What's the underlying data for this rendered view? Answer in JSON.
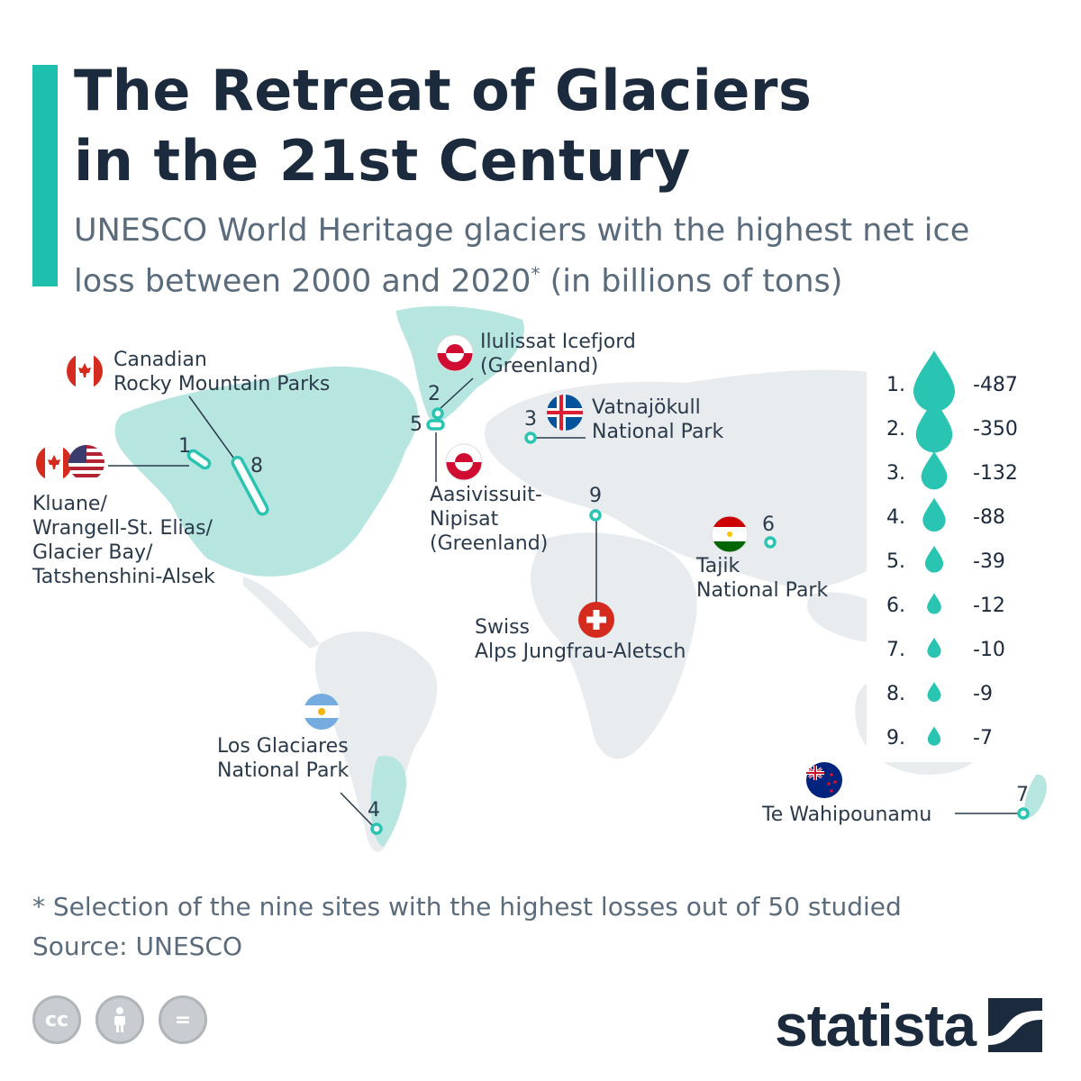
{
  "header": {
    "title_line1": "The Retreat of Glaciers",
    "title_line2": "in the 21st Century",
    "subtitle_part1": "UNESCO World Heritage glaciers with the highest net ice loss between 2000 and 2020",
    "subtitle_asterisk": "*",
    "subtitle_part2": " (in billions of tons)"
  },
  "colors": {
    "accent": "#1fbfae",
    "land_highlight": "#b7e6e0",
    "land_grey": "#e9ecee",
    "drop": "#2ac4b3",
    "title": "#1b2a3d",
    "subtitle": "#5a6b7c"
  },
  "sites": [
    {
      "rank": "1",
      "name_lines": [
        "Kluane/",
        "Wrangell-St. Elias/",
        "Glacier Bay/",
        "Tatshenshini-Alsek"
      ],
      "flags": [
        "canada-flag",
        "usa-flag"
      ]
    },
    {
      "rank": "2",
      "name_lines": [
        "Ilulissat Icefjord",
        "(Greenland)"
      ],
      "flags": [
        "greenland-flag"
      ]
    },
    {
      "rank": "3",
      "name_lines": [
        "Vatnajökull",
        "National Park"
      ],
      "flags": [
        "iceland-flag"
      ]
    },
    {
      "rank": "4",
      "name_lines": [
        "Los Glaciares",
        "National Park"
      ],
      "flags": [
        "argentina-flag"
      ]
    },
    {
      "rank": "5",
      "name_lines": [
        "Aasivissuit-",
        "Nipisat",
        "(Greenland)"
      ],
      "flags": [
        "greenland-flag"
      ]
    },
    {
      "rank": "6",
      "name_lines": [
        "Tajik",
        "National Park"
      ],
      "flags": [
        "tajikistan-flag"
      ]
    },
    {
      "rank": "7",
      "name_lines": [
        "Te Wahipounamu"
      ],
      "flags": [
        "new-zealand-flag"
      ]
    },
    {
      "rank": "8",
      "name_lines": [
        "Canadian",
        "Rocky Mountain Parks"
      ],
      "flags": [
        "canada-flag"
      ]
    },
    {
      "rank": "9",
      "name_lines": [
        "Swiss",
        "Alps Jungfrau-Aletsch"
      ],
      "flags": [
        "switzerland-flag"
      ]
    }
  ],
  "chart_data": {
    "type": "map",
    "title": "The Retreat of Glaciers in the 21st Century",
    "subtitle": "UNESCO World Heritage glaciers with the highest net ice loss between 2000 and 2020* (in billions of tons)",
    "legend": [
      {
        "rank": "1.",
        "value": -487
      },
      {
        "rank": "2.",
        "value": -350
      },
      {
        "rank": "3.",
        "value": -132
      },
      {
        "rank": "4.",
        "value": -88
      },
      {
        "rank": "5.",
        "value": -39
      },
      {
        "rank": "6.",
        "value": -12
      },
      {
        "rank": "7.",
        "value": -10
      },
      {
        "rank": "8.",
        "value": -9
      },
      {
        "rank": "9.",
        "value": -7
      }
    ]
  },
  "footer": {
    "footnote": "* Selection of the nine sites with the highest losses out of 50 studied",
    "source": "Source: UNESCO",
    "license_icons": [
      "cc-icon",
      "attribution-icon",
      "no-derivatives-icon"
    ],
    "cc_label": "cc",
    "nd_label": "=",
    "brand": "statista"
  }
}
